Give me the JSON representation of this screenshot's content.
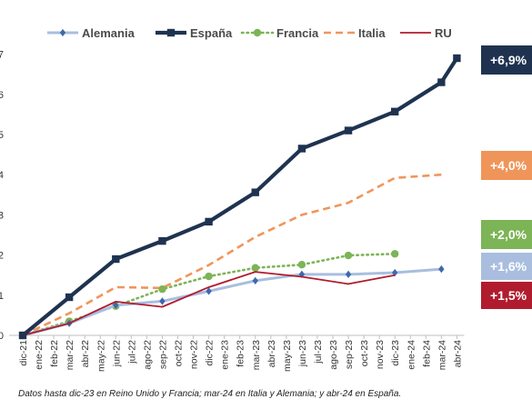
{
  "chart_data": {
    "type": "line",
    "x": [
      "dic-21",
      "ene-22",
      "feb-22",
      "mar-22",
      "abr-22",
      "may-22",
      "jun-22",
      "jul-22",
      "ago-22",
      "sep-22",
      "oct-22",
      "nov-22",
      "dic-22",
      "ene-23",
      "feb-23",
      "mar-23",
      "abr-23",
      "may-23",
      "jun-23",
      "jul-23",
      "ago-23",
      "sep-23",
      "oct-23",
      "nov-23",
      "dic-23",
      "ene-24",
      "feb-24",
      "mar-24",
      "abr-24"
    ],
    "yticks": [
      0,
      1,
      2,
      3,
      4,
      5,
      6,
      7
    ],
    "ylim": [
      0,
      7.5
    ],
    "grid": false,
    "legend_position": "top",
    "series": [
      {
        "name": "Alemania",
        "color": "#a9bedf",
        "style": "solid-diamond",
        "values": [
          0,
          null,
          null,
          0.3,
          null,
          null,
          0.75,
          null,
          null,
          0.85,
          null,
          null,
          1.1,
          null,
          null,
          1.36,
          null,
          null,
          1.52,
          null,
          null,
          1.52,
          null,
          null,
          1.56,
          null,
          null,
          1.65,
          null
        ]
      },
      {
        "name": "España",
        "color": "#1f3350",
        "style": "thick-square",
        "values": [
          0,
          null,
          null,
          0.95,
          null,
          null,
          1.9,
          null,
          null,
          2.35,
          null,
          null,
          2.83,
          null,
          null,
          3.56,
          null,
          null,
          4.65,
          null,
          null,
          5.1,
          null,
          null,
          5.57,
          null,
          null,
          6.3,
          6.9
        ]
      },
      {
        "name": "Francia",
        "color": "#7cb456",
        "style": "dotted-circle",
        "values": [
          0,
          null,
          null,
          0.35,
          null,
          null,
          0.73,
          null,
          null,
          1.15,
          null,
          null,
          1.47,
          null,
          null,
          1.68,
          null,
          null,
          1.76,
          null,
          null,
          1.99,
          null,
          null,
          2.03,
          null,
          null,
          null,
          null
        ]
      },
      {
        "name": "Italia",
        "color": "#f0955a",
        "style": "dashed",
        "values": [
          0,
          null,
          null,
          0.55,
          null,
          null,
          1.2,
          null,
          null,
          1.18,
          null,
          null,
          1.75,
          null,
          null,
          2.45,
          null,
          null,
          3.0,
          null,
          null,
          3.3,
          null,
          null,
          3.92,
          null,
          null,
          4.0,
          null
        ]
      },
      {
        "name": "RU",
        "color": "#b01c2e",
        "style": "thin",
        "values": [
          0,
          null,
          null,
          0.3,
          null,
          null,
          0.84,
          null,
          null,
          0.71,
          null,
          null,
          1.2,
          null,
          null,
          1.58,
          null,
          null,
          1.46,
          null,
          null,
          1.28,
          null,
          null,
          1.5,
          null,
          null,
          null,
          null
        ]
      }
    ],
    "badges": [
      {
        "label": "+6,9%",
        "color": "#1f3350",
        "value": 6.9
      },
      {
        "label": "+4,0%",
        "color": "#f0955a",
        "value": 4.0
      },
      {
        "label": "+2,0%",
        "color": "#7cb456",
        "value": 2.03
      },
      {
        "label": "+1,6%",
        "color": "#a9bedf",
        "value": 1.65
      },
      {
        "label": "+1,5%",
        "color": "#b01c2e",
        "value": 1.5
      }
    ],
    "footnote": "Datos hasta dic-23 en Reino Unido y Francia; mar-24 en Italia y Alemania; y abr-24 en España."
  }
}
